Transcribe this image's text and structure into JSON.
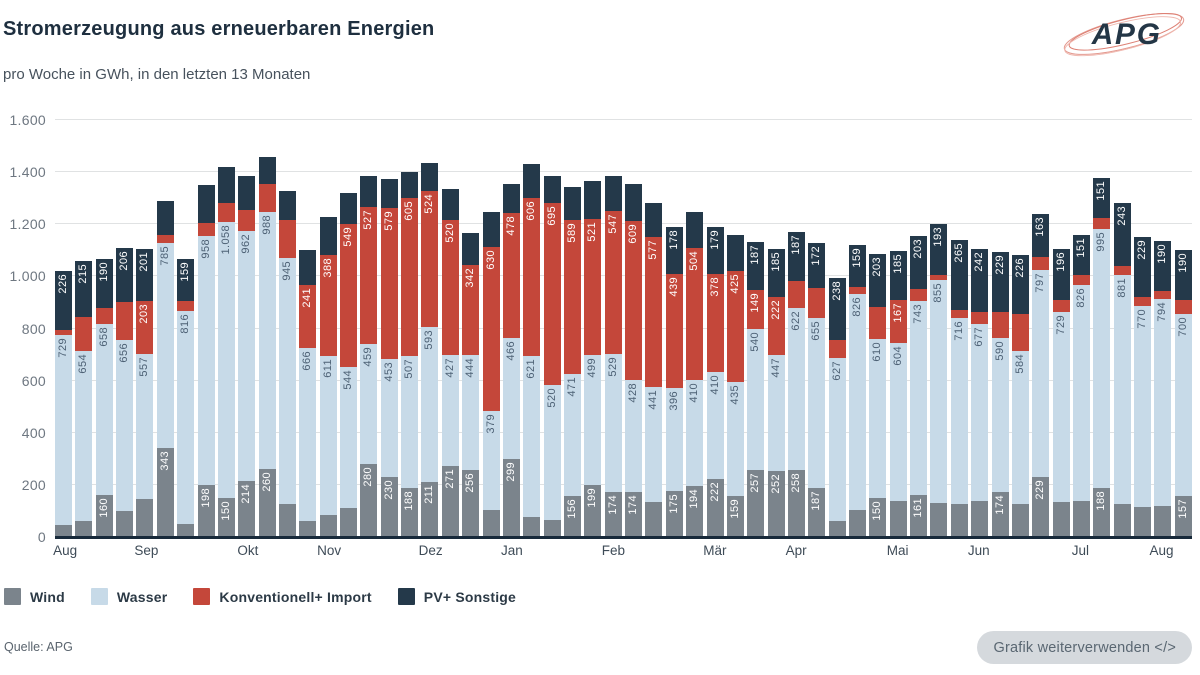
{
  "header": {
    "title": "Stromerzeugung aus erneuerbaren Energien",
    "subtitle": "pro Woche in GWh, in den letzten 13 Monaten",
    "logo_text": "APG"
  },
  "legend": {
    "items": [
      {
        "label": "Wind",
        "color": "#7b848c"
      },
      {
        "label": "Wasser",
        "color": "#c7dae8"
      },
      {
        "label": "Konventionell+ Import",
        "color": "#c4473a"
      },
      {
        "label": "PV+ Sonstige",
        "color": "#24394a"
      }
    ]
  },
  "footer": {
    "source": "Quelle: APG",
    "button_label": "Grafik weiterverwenden </>"
  },
  "chart_data": {
    "type": "bar",
    "stacked": true,
    "unit": "GWh",
    "title": "Stromerzeugung aus erneuerbaren Energien",
    "subtitle": "pro Woche in GWh, in den letzten 13 Monaten",
    "ylim": [
      0,
      1600
    ],
    "yticks": [
      0,
      200,
      400,
      600,
      800,
      1000,
      1200,
      1400,
      1600
    ],
    "grid": true,
    "legend_position": "bottom",
    "label_min_value": 149,
    "bar_count": 56,
    "month_ticks": [
      {
        "label": "Aug",
        "bar_index": 0
      },
      {
        "label": "Sep",
        "bar_index": 4
      },
      {
        "label": "Okt",
        "bar_index": 9
      },
      {
        "label": "Nov",
        "bar_index": 13
      },
      {
        "label": "Dez",
        "bar_index": 18
      },
      {
        "label": "Jan",
        "bar_index": 22
      },
      {
        "label": "Feb",
        "bar_index": 27
      },
      {
        "label": "Mär",
        "bar_index": 32
      },
      {
        "label": "Apr",
        "bar_index": 36
      },
      {
        "label": "Mai",
        "bar_index": 41
      },
      {
        "label": "Jun",
        "bar_index": 45
      },
      {
        "label": "Jul",
        "bar_index": 50
      },
      {
        "label": "Aug",
        "bar_index": 54
      }
    ],
    "series": [
      {
        "name": "Wind",
        "color": "#7b848c",
        "label_color": "#ffffff",
        "values": [
          45,
          60,
          160,
          100,
          145,
          343,
          50,
          198,
          150,
          214,
          260,
          125,
          60,
          85,
          110,
          280,
          230,
          188,
          211,
          271,
          256,
          105,
          299,
          75,
          65,
          156,
          199,
          174,
          174,
          135,
          175,
          194,
          222,
          159,
          257,
          252,
          258,
          187,
          60,
          105,
          150,
          140,
          161,
          130,
          125,
          140,
          174,
          128,
          229,
          135,
          140,
          188,
          125,
          115,
          120,
          157
        ]
      },
      {
        "name": "Wasser",
        "color": "#c7dae8",
        "label_color": "#4d6175",
        "values": [
          729,
          654,
          658,
          656,
          557,
          785,
          816,
          958,
          1058,
          962,
          988,
          945,
          666,
          611,
          544,
          459,
          453,
          507,
          593,
          427,
          444,
          379,
          466,
          621,
          520,
          471,
          499,
          529,
          428,
          441,
          396,
          410,
          410,
          435,
          540,
          447,
          622,
          655,
          627,
          826,
          610,
          604,
          743,
          855,
          716,
          677,
          590,
          584,
          797,
          729,
          826,
          995,
          881,
          770,
          794,
          700
        ]
      },
      {
        "name": "Konventionell+ Import",
        "color": "#c4473a",
        "label_color": "#ffffff",
        "values": [
          20,
          131,
          60,
          146,
          203,
          32,
          40,
          50,
          75,
          80,
          105,
          145,
          241,
          388,
          549,
          527,
          579,
          605,
          524,
          520,
          342,
          630,
          478,
          606,
          695,
          589,
          521,
          547,
          609,
          577,
          439,
          504,
          378,
          425,
          149,
          222,
          102,
          115,
          70,
          30,
          122,
          167,
          47,
          22,
          32,
          45,
          99,
          143,
          49,
          44,
          41,
          43,
          32,
          36,
          31,
          53
        ]
      },
      {
        "name": "PV+ Sonstige",
        "color": "#24394a",
        "label_color": "#ffffff",
        "values": [
          226,
          215,
          190,
          206,
          201,
          128,
          159,
          144,
          136,
          129,
          105,
          112,
          133,
          143,
          116,
          119,
          111,
          100,
          107,
          117,
          123,
          132,
          111,
          129,
          105,
          126,
          146,
          135,
          145,
          127,
          178,
          138,
          179,
          140,
          187,
          185,
          187,
          172,
          238,
          159,
          203,
          185,
          203,
          193,
          265,
          242,
          229,
          226,
          163,
          196,
          151,
          151,
          243,
          229,
          190,
          190
        ]
      }
    ]
  }
}
